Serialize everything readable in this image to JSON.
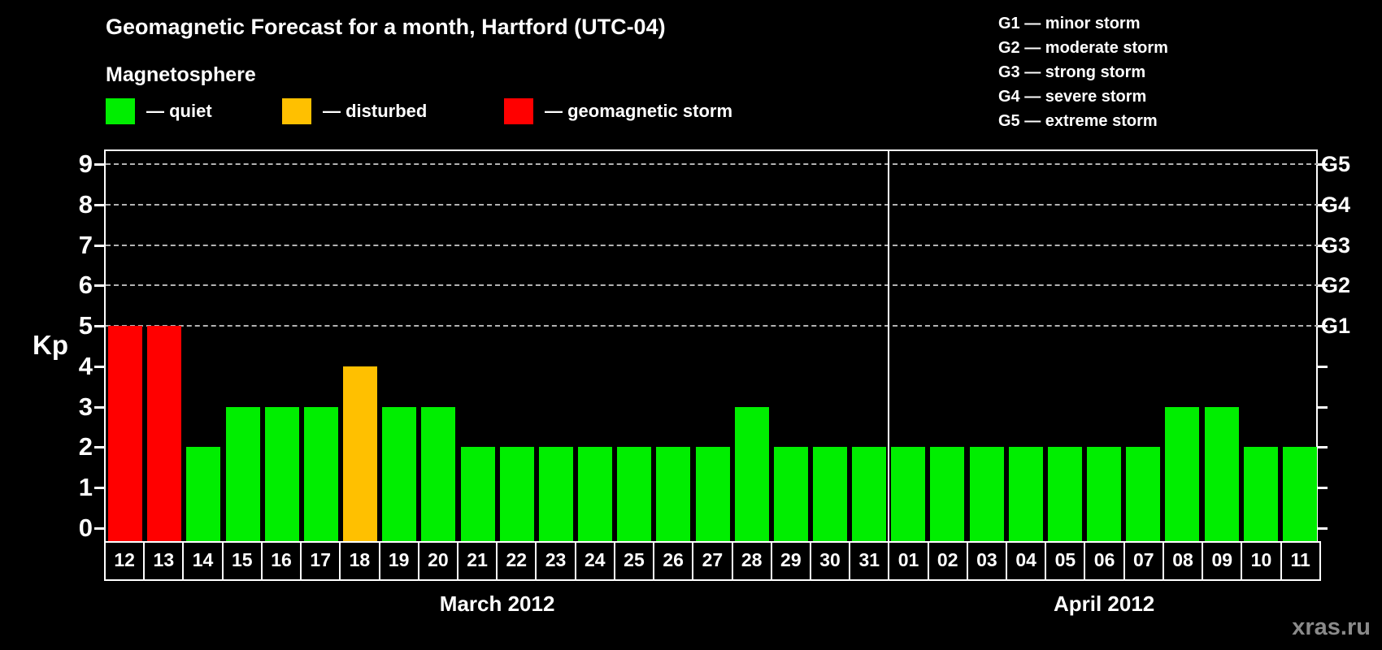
{
  "header": {
    "title": "Geomagnetic Forecast for a month, Hartford (UTC-04)",
    "subtitle": "Magnetosphere",
    "legend": [
      {
        "status": "quiet",
        "label": "— quiet",
        "color": "#00ee00"
      },
      {
        "status": "disturbed",
        "label": "— disturbed",
        "color": "#ffc000"
      },
      {
        "status": "storm",
        "label": "— geomagnetic storm",
        "color": "#ff0000"
      }
    ],
    "g_legend": [
      "G1 — minor storm",
      "G2 — moderate storm",
      "G3 — strong storm",
      "G4 — severe storm",
      "G5 — extreme storm"
    ]
  },
  "chart_data": {
    "type": "bar",
    "title": "Geomagnetic Forecast for a month, Hartford (UTC-04)",
    "xlabel": "",
    "ylabel": "Kp",
    "ylim": [
      0,
      9
    ],
    "yticks": [
      0,
      1,
      2,
      3,
      4,
      5,
      6,
      7,
      8,
      9
    ],
    "gridlines_at": [
      5,
      6,
      7,
      8,
      9
    ],
    "grid": "dashed horizontal lines at storm levels Kp 5–9 only",
    "right_axis_labels": [
      {
        "value": 5,
        "label": "G1"
      },
      {
        "value": 6,
        "label": "G2"
      },
      {
        "value": 7,
        "label": "G3"
      },
      {
        "value": 8,
        "label": "G4"
      },
      {
        "value": 9,
        "label": "G5"
      }
    ],
    "categories": [
      "12",
      "13",
      "14",
      "15",
      "16",
      "17",
      "18",
      "19",
      "20",
      "21",
      "22",
      "23",
      "24",
      "25",
      "26",
      "27",
      "28",
      "29",
      "30",
      "31",
      "01",
      "02",
      "03",
      "04",
      "05",
      "06",
      "07",
      "08",
      "09",
      "10",
      "11"
    ],
    "values": [
      5,
      5,
      2,
      3,
      3,
      3,
      4,
      3,
      3,
      2,
      2,
      2,
      2,
      2,
      2,
      2,
      3,
      2,
      2,
      2,
      2,
      2,
      2,
      2,
      2,
      2,
      2,
      3,
      3,
      2,
      2
    ],
    "statuses": [
      "storm",
      "storm",
      "quiet",
      "quiet",
      "quiet",
      "quiet",
      "disturbed",
      "quiet",
      "quiet",
      "quiet",
      "quiet",
      "quiet",
      "quiet",
      "quiet",
      "quiet",
      "quiet",
      "quiet",
      "quiet",
      "quiet",
      "quiet",
      "quiet",
      "quiet",
      "quiet",
      "quiet",
      "quiet",
      "quiet",
      "quiet",
      "quiet",
      "quiet",
      "quiet",
      "quiet"
    ],
    "status_colors": {
      "quiet": "#00ee00",
      "disturbed": "#ffc000",
      "storm": "#ff0000"
    },
    "months": [
      {
        "label": "March 2012",
        "days": 20
      },
      {
        "label": "April 2012",
        "days": 11
      }
    ],
    "legend_position": "top-left",
    "axis_color": "#ffffff",
    "gridline_color": "#b3b3b3",
    "background": "#000000"
  },
  "watermark": "xras.ru"
}
